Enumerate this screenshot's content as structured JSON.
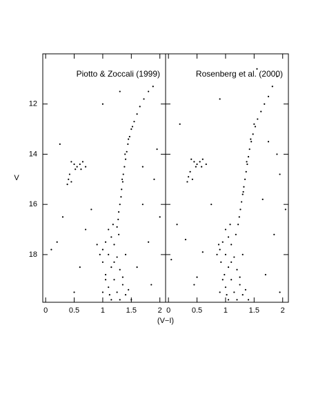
{
  "chart_data": [
    {
      "type": "scatter",
      "title": "Piotto & Zoccali (1999)",
      "xlabel": "(V−I)",
      "ylabel": "V",
      "color": "#000000",
      "xlim": [
        -0.05,
        2.1
      ],
      "ylim": [
        10,
        19.9
      ],
      "y_inverted": true,
      "show_ytick_labels": true,
      "xticks": [
        0,
        0.5,
        1,
        1.5,
        2
      ],
      "yticks": [
        12,
        14,
        16,
        18
      ],
      "x": [
        1.88,
        1.8,
        1.72,
        1.65,
        1.6,
        1.55,
        1.5,
        1.47,
        1.44,
        1.42,
        1.4,
        1.38,
        1.36,
        1.35,
        1.33,
        1.32,
        1.3,
        1.28,
        1.27,
        1.25,
        1.45,
        1.52,
        1.39,
        1.34,
        0.45,
        0.5,
        0.55,
        0.6,
        0.65,
        0.52,
        0.42,
        0.4,
        0.38,
        0.45,
        0.62,
        0.7,
        1.1,
        1.15,
        1.05,
        1.2,
        1.0,
        1.1,
        1.25,
        1.0,
        1.15,
        1.3,
        1.05,
        1.2,
        1.35,
        1.1,
        1.25,
        1.4,
        1.15,
        1.3,
        0.95,
        1.05,
        1.2,
        1.35,
        1.45,
        1.5,
        0.9,
        1.0,
        1.28,
        1.4,
        1.18,
        1.12,
        0.3,
        0.2,
        0.1,
        0.6,
        1.7,
        1.8,
        1.9,
        2.0,
        0.8,
        1.6,
        0.5,
        1.95,
        0.25,
        1.0,
        1.3,
        1.7,
        0.7,
        1.85
      ],
      "y": [
        11.3,
        11.5,
        11.8,
        12.1,
        12.4,
        12.7,
        13.0,
        13.3,
        13.6,
        13.9,
        14.2,
        14.5,
        14.8,
        15.1,
        15.4,
        15.7,
        16.0,
        16.3,
        16.6,
        16.9,
        13.4,
        12.9,
        14.0,
        15.0,
        14.3,
        14.4,
        14.5,
        14.4,
        14.3,
        14.6,
        14.8,
        15.0,
        15.2,
        15.1,
        14.6,
        14.5,
        17.0,
        17.3,
        17.5,
        17.6,
        17.8,
        18.0,
        18.1,
        18.3,
        18.5,
        18.6,
        18.8,
        19.0,
        19.2,
        19.3,
        19.5,
        19.6,
        19.8,
        19.8,
        18.0,
        19.0,
        18.3,
        18.9,
        19.4,
        19.8,
        17.6,
        19.5,
        17.2,
        18.0,
        16.8,
        19.6,
        16.5,
        17.5,
        17.8,
        18.5,
        16.0,
        17.5,
        15.0,
        16.5,
        16.2,
        18.5,
        19.5,
        13.8,
        13.6,
        12.0,
        11.5,
        14.5,
        17.0,
        19.2
      ]
    },
    {
      "type": "scatter",
      "title": "Rosenberg et al. (2000)",
      "color": "#000000",
      "xlim": [
        -0.05,
        2.1
      ],
      "ylim": [
        10,
        19.9
      ],
      "y_inverted": true,
      "show_ytick_labels": false,
      "xticks": [
        0,
        0.5,
        1,
        1.5,
        2
      ],
      "yticks": [
        12,
        14,
        16,
        18
      ],
      "x": [
        1.9,
        1.82,
        1.75,
        1.68,
        1.62,
        1.56,
        1.52,
        1.48,
        1.45,
        1.42,
        1.4,
        1.38,
        1.36,
        1.34,
        1.32,
        1.3,
        1.28,
        1.26,
        1.24,
        1.22,
        1.5,
        1.44,
        1.37,
        1.31,
        0.4,
        0.45,
        0.5,
        0.55,
        0.6,
        0.48,
        0.38,
        0.35,
        0.33,
        0.42,
        0.58,
        0.66,
        1.0,
        1.05,
        0.95,
        1.1,
        0.9,
        1.0,
        1.15,
        0.92,
        1.05,
        1.2,
        0.98,
        1.1,
        1.25,
        1.0,
        1.15,
        1.3,
        1.05,
        1.2,
        0.85,
        0.95,
        1.1,
        1.25,
        1.35,
        1.4,
        0.88,
        0.9,
        1.18,
        1.3,
        1.08,
        1.02,
        0.15,
        0.3,
        0.05,
        0.5,
        1.65,
        1.85,
        1.95,
        2.05,
        0.75,
        1.7,
        0.45,
        1.9,
        0.2,
        0.9,
        1.55,
        1.75,
        0.6,
        1.95
      ],
      "y": [
        10.9,
        11.3,
        11.7,
        12.0,
        12.3,
        12.6,
        12.9,
        13.2,
        13.5,
        13.8,
        14.1,
        14.4,
        14.7,
        15.0,
        15.3,
        15.6,
        15.9,
        16.2,
        16.5,
        16.8,
        12.8,
        13.4,
        14.3,
        15.5,
        14.2,
        14.3,
        14.4,
        14.3,
        14.2,
        14.5,
        14.7,
        14.9,
        15.1,
        15.0,
        14.5,
        14.4,
        17.0,
        17.3,
        17.5,
        17.6,
        17.8,
        18.0,
        18.1,
        18.3,
        18.5,
        18.6,
        18.8,
        19.0,
        19.2,
        19.3,
        19.5,
        19.6,
        19.8,
        19.8,
        18.0,
        19.0,
        18.3,
        18.9,
        19.4,
        19.8,
        17.6,
        19.5,
        17.2,
        18.0,
        16.8,
        19.6,
        16.8,
        17.4,
        18.2,
        18.9,
        15.8,
        17.2,
        14.8,
        16.2,
        16.0,
        18.8,
        19.2,
        14.0,
        12.8,
        11.8,
        10.6,
        13.5,
        17.9,
        19.5
      ]
    }
  ]
}
